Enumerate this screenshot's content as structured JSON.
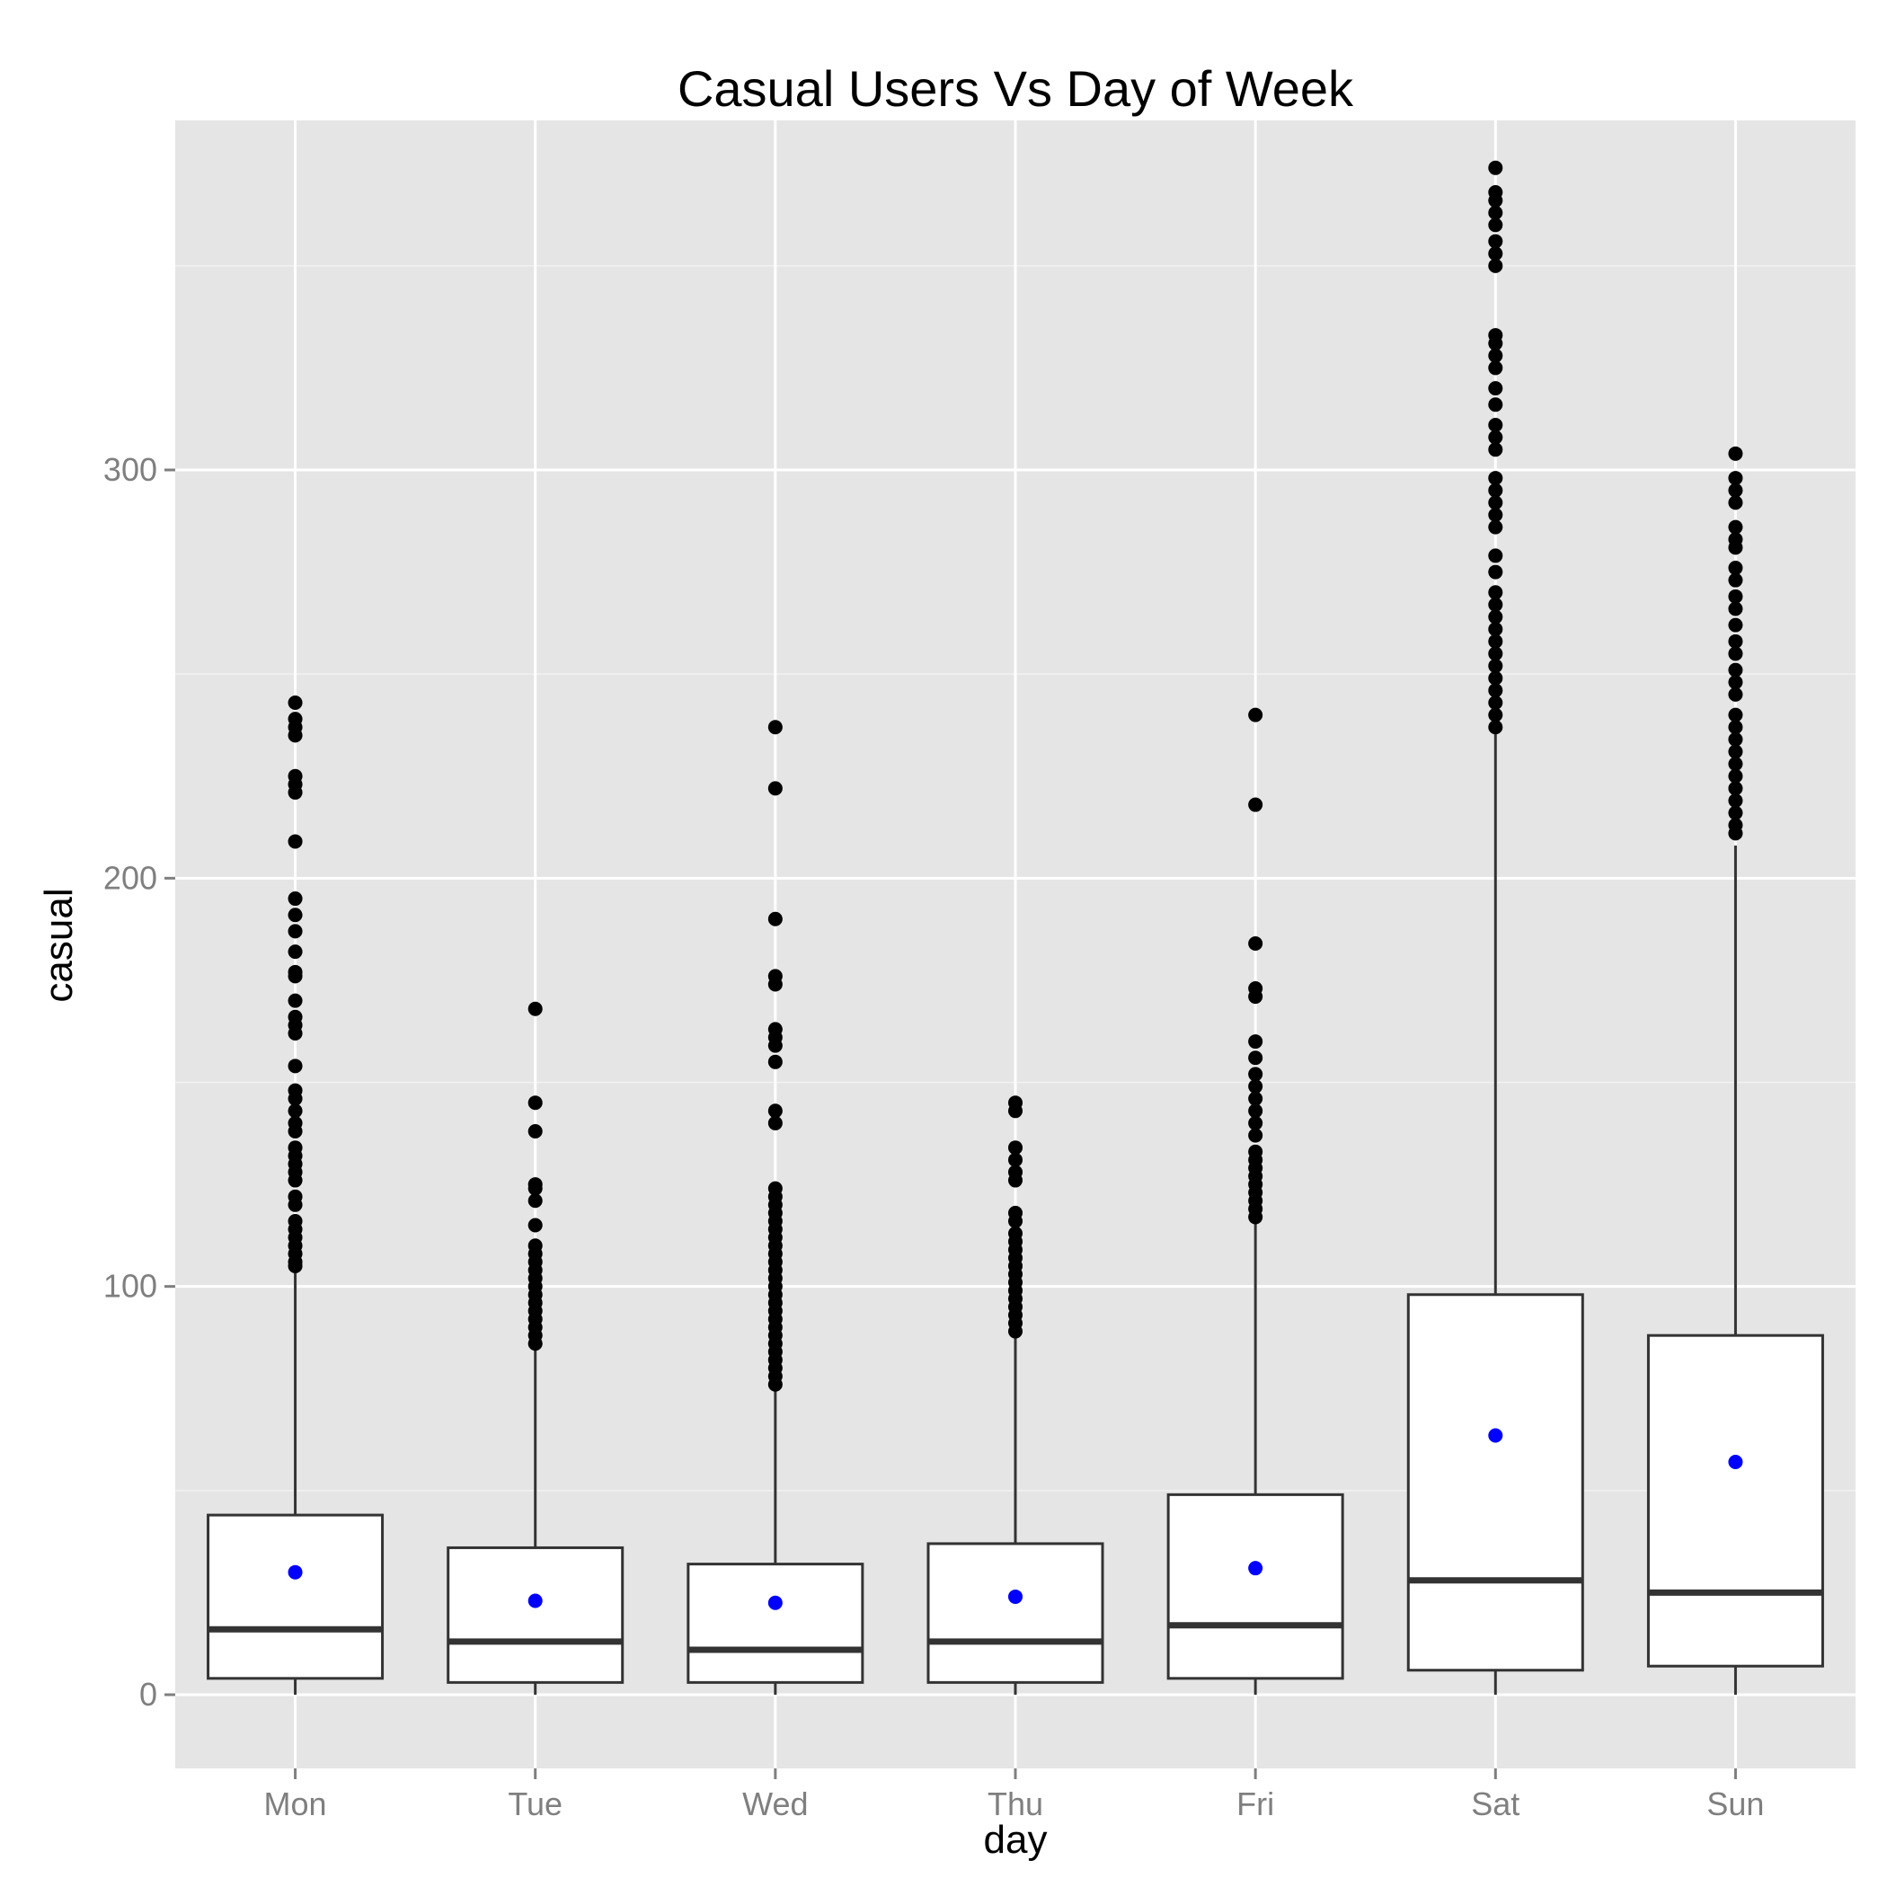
{
  "chart_data": {
    "type": "box",
    "title": "Casual Users Vs Day of Week",
    "xlabel": "day",
    "ylabel": "casual",
    "ylim": [
      -18,
      385
    ],
    "yticks": [
      0,
      100,
      200,
      300
    ],
    "ytick_labels": [
      "0",
      "100",
      "200",
      "300"
    ],
    "categories": [
      "Mon",
      "Tue",
      "Wed",
      "Thu",
      "Fri",
      "Sat",
      "Sun"
    ],
    "grid": true,
    "boxes": [
      {
        "category": "Mon",
        "q1": 4,
        "median": 16,
        "q3": 44,
        "whisker_low": 0,
        "whisker_high": 105,
        "mean": 30,
        "outliers": [
          105,
          106,
          108,
          110,
          112,
          114,
          116,
          120,
          122,
          126,
          128,
          130,
          132,
          134,
          138,
          140,
          143,
          146,
          148,
          154,
          162,
          164,
          166,
          170,
          176,
          177,
          182,
          187,
          191,
          195,
          209,
          221,
          223,
          225,
          235,
          237,
          239,
          243
        ]
      },
      {
        "category": "Tue",
        "q1": 3,
        "median": 13,
        "q3": 36,
        "whisker_low": 0,
        "whisker_high": 86,
        "mean": 23,
        "outliers": [
          86,
          88,
          90,
          92,
          94,
          96,
          98,
          100,
          102,
          104,
          106,
          108,
          110,
          115,
          121,
          124,
          125,
          138,
          145,
          168
        ]
      },
      {
        "category": "Wed",
        "q1": 3,
        "median": 11,
        "q3": 32,
        "whisker_low": 0,
        "whisker_high": 75,
        "mean": 22.5,
        "outliers": [
          76,
          78,
          80,
          82,
          84,
          86,
          88,
          90,
          92,
          94,
          96,
          98,
          100,
          102,
          104,
          106,
          108,
          110,
          112,
          114,
          116,
          118,
          120,
          122,
          124,
          140,
          143,
          155,
          159,
          161,
          163,
          174,
          176,
          190,
          222,
          237
        ]
      },
      {
        "category": "Thu",
        "q1": 3,
        "median": 13,
        "q3": 37,
        "whisker_low": 0,
        "whisker_high": 89,
        "mean": 24,
        "outliers": [
          89,
          91,
          93,
          95,
          97,
          99,
          101,
          103,
          105,
          107,
          109,
          111,
          113,
          116,
          118,
          126,
          128,
          131,
          134,
          143,
          145
        ]
      },
      {
        "category": "Fri",
        "q1": 4,
        "median": 17,
        "q3": 49,
        "whisker_low": 0,
        "whisker_high": 117,
        "mean": 31,
        "outliers": [
          117,
          119,
          121,
          123,
          125,
          127,
          129,
          131,
          133,
          137,
          140,
          143,
          146,
          149,
          152,
          156,
          160,
          171,
          173,
          184,
          218,
          240
        ]
      },
      {
        "category": "Sat",
        "q1": 6,
        "median": 28,
        "q3": 98,
        "whisker_low": 0,
        "whisker_high": 236,
        "mean": 63.5,
        "outliers": [
          237,
          240,
          243,
          246,
          249,
          252,
          255,
          258,
          261,
          264,
          267,
          270,
          275,
          279,
          286,
          289,
          292,
          295,
          298,
          305,
          308,
          311,
          316,
          320,
          325,
          328,
          331,
          333,
          350,
          353,
          356,
          360,
          363,
          366,
          368,
          374
        ]
      },
      {
        "category": "Sun",
        "q1": 7,
        "median": 25,
        "q3": 88,
        "whisker_low": 0,
        "whisker_high": 208,
        "mean": 57,
        "outliers": [
          211,
          213,
          216,
          219,
          222,
          225,
          228,
          231,
          234,
          237,
          240,
          245,
          248,
          251,
          255,
          258,
          262,
          266,
          269,
          273,
          276,
          281,
          283,
          286,
          292,
          295,
          298,
          304
        ]
      }
    ],
    "colors": {
      "panel_background": "#e5e5e5",
      "grid_major": "#ffffff",
      "grid_minor": "#f2f2f2",
      "box_fill": "#ffffff",
      "box_line": "#333333",
      "outlier": "#000000",
      "mean_point": "#0000ff"
    }
  }
}
